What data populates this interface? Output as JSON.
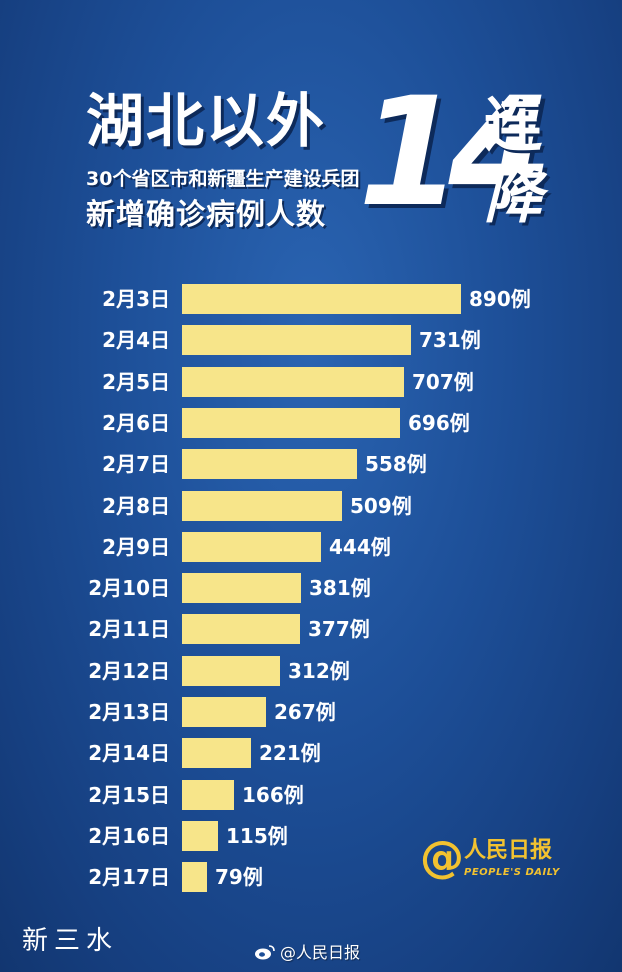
{
  "header": {
    "title": "湖北以外",
    "subtitle": "30个省区市和新疆生产建设兵团",
    "metric": "新增确诊病例人数",
    "streak_number": "14",
    "streak_word_1": "连",
    "streak_word_2": "降"
  },
  "chart_data": {
    "type": "bar",
    "orientation": "horizontal",
    "categories": [
      "2月3日",
      "2月4日",
      "2月5日",
      "2月6日",
      "2月7日",
      "2月8日",
      "2月9日",
      "2月10日",
      "2月11日",
      "2月12日",
      "2月13日",
      "2月14日",
      "2月15日",
      "2月16日",
      "2月17日"
    ],
    "values": [
      890,
      731,
      707,
      696,
      558,
      509,
      444,
      381,
      377,
      312,
      267,
      221,
      166,
      115,
      79
    ],
    "value_labels": [
      "890例",
      "731例",
      "707例",
      "696例",
      "558例",
      "509例",
      "444例",
      "381例",
      "377例",
      "312例",
      "267例",
      "221例",
      "166例",
      "115例",
      "79例"
    ],
    "bar_color": "#f7e58a",
    "grid": false
  },
  "logo": {
    "symbol": "@",
    "name": "人民日报",
    "english": "PEOPLE'S DAILY",
    "color": "#f2c230"
  },
  "footer": {
    "left_text": "新三水",
    "weibo_handle": "@人民日报",
    "icon": "weibo-icon"
  }
}
